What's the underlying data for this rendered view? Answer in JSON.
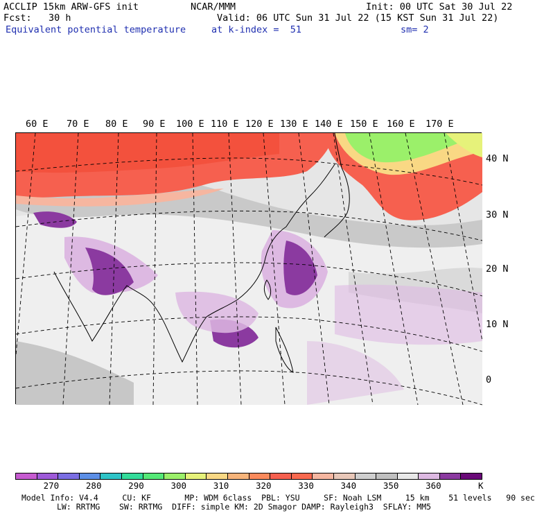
{
  "header": {
    "model": "ACCLIP 15km ARW-GFS init",
    "org": "NCAR/MMM",
    "init": "Init: 00 UTC Sat 30 Jul 22",
    "fcst": "Fcst:   30 h",
    "valid": "Valid: 06 UTC Sun 31 Jul 22 (15 KST Sun 31 Jul 22)",
    "field": "Equivalent potential temperature",
    "level": "at k-index =  51",
    "smooth": "sm= 2"
  },
  "map": {
    "lon_labels": [
      "60 E",
      "70 E",
      "80 E",
      "90 E",
      "100 E",
      "110 E",
      "120 E",
      "130 E",
      "140 E",
      "150 E",
      "160 E",
      "170 E"
    ],
    "lat_labels": [
      "40 N",
      "30 N",
      "20 N",
      "10 N",
      "0"
    ]
  },
  "colorbar": {
    "colors": [
      "#c65bd0",
      "#9e5ad9",
      "#7b6ee3",
      "#5c8fe6",
      "#2ec4c7",
      "#33dc9a",
      "#55e877",
      "#9bf06a",
      "#e6f27a",
      "#f9d884",
      "#f7b47a",
      "#fb8a5c",
      "#f6604f",
      "#f9694f",
      "#f6b6a0",
      "#e8c7b8",
      "#cfcfcf",
      "#c0c0c0",
      "#e8e8e8",
      "#ddb9e2",
      "#8b3aa0",
      "#6a0a78"
    ],
    "labels": [
      "270",
      "280",
      "290",
      "300",
      "310",
      "320",
      "330",
      "340",
      "350",
      "360",
      "K"
    ],
    "unit": "K"
  },
  "footer": {
    "line1": "Model Info: V4.4     CU: KF       MP: WDM 6class  PBL: YSU     SF: Noah LSM     15 km    51 levels   90 sec",
    "line2": "LW: RRTMG    SW: RRTMG  DIFF: simple KM: 2D Smagor DAMP: Rayleigh3  SFLAY: MM5"
  }
}
